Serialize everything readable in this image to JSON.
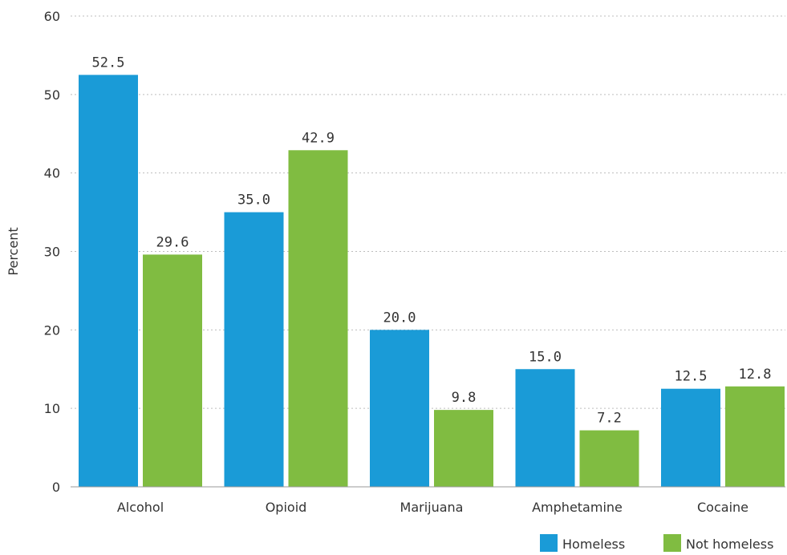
{
  "chart_data": {
    "type": "bar",
    "title": "",
    "xlabel": "",
    "ylabel": "Percent",
    "ylim": [
      0,
      60
    ],
    "yticks": [
      0,
      10,
      20,
      30,
      40,
      50,
      60
    ],
    "grid": true,
    "legend_position": "bottom-right",
    "categories": [
      "Alcohol",
      "Opioid",
      "Marijuana",
      "Amphetamine",
      "Cocaine"
    ],
    "series": [
      {
        "name": "Homeless",
        "color": "#1a9bd7",
        "values": [
          52.5,
          35.0,
          20.0,
          15.0,
          12.5
        ],
        "labels": [
          "52.5",
          "35.0",
          "20.0",
          "15.0",
          "12.5"
        ]
      },
      {
        "name": "Not homeless",
        "color": "#80bc41",
        "values": [
          29.6,
          42.9,
          9.8,
          7.2,
          12.8
        ],
        "labels": [
          "29.6",
          "42.9",
          "9.8",
          "7.2",
          "12.8"
        ]
      }
    ]
  }
}
